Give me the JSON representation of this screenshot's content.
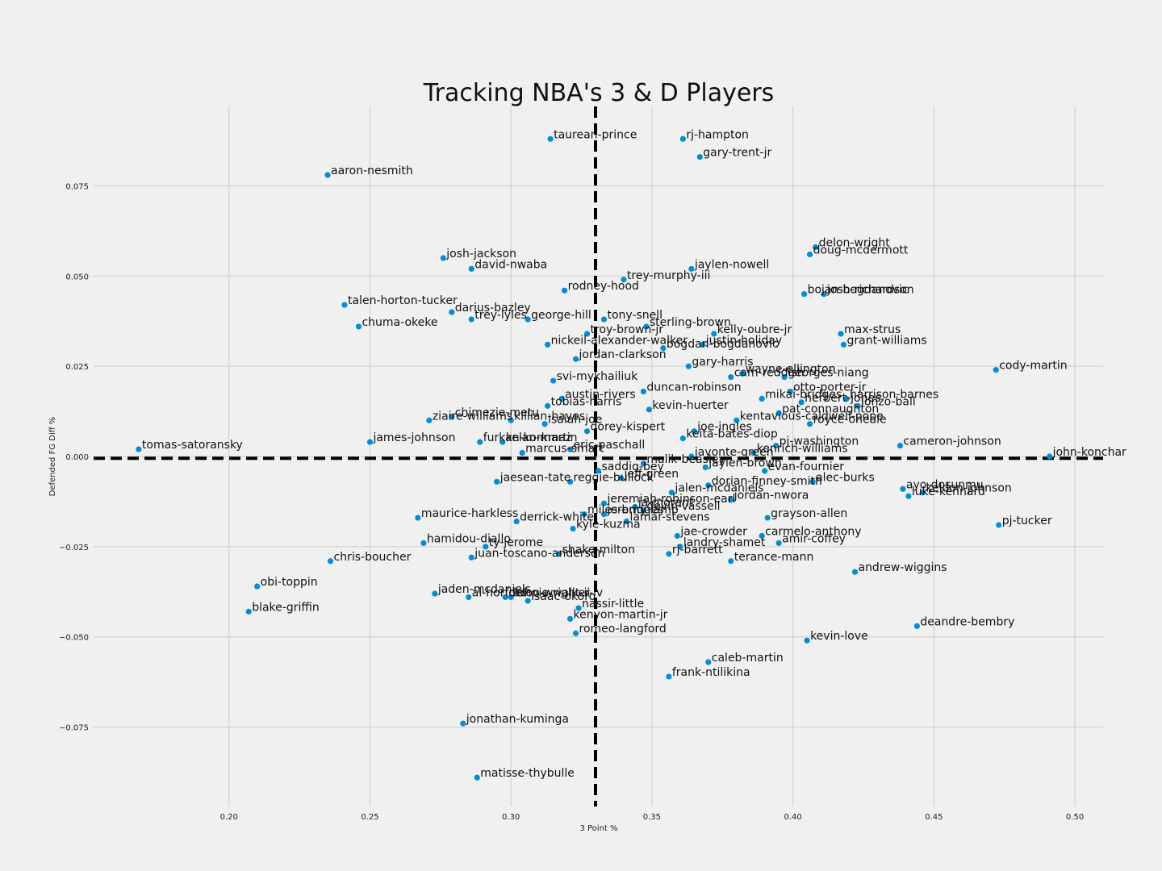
{
  "chart_data": {
    "type": "scatter",
    "title": "Tracking NBA's 3 & D Players",
    "xlabel": "3 Point %",
    "ylabel": "Defended FG Diff %",
    "xlim": [
      0.152,
      0.51
    ],
    "ylim": [
      -0.097,
      0.097
    ],
    "xticks": [
      0.2,
      0.25,
      0.3,
      0.35,
      0.4,
      0.45,
      0.5
    ],
    "xtick_labels": [
      "0.20",
      "0.25",
      "0.30",
      "0.35",
      "0.40",
      "0.45",
      "0.50"
    ],
    "yticks": [
      -0.075,
      -0.05,
      -0.025,
      0.0,
      0.025,
      0.05,
      0.075
    ],
    "ytick_labels": [
      "−0.075",
      "−0.050",
      "−0.025",
      "0.000",
      "0.025",
      "0.050",
      "0.075"
    ],
    "grid": true,
    "reference_lines": {
      "x": 0.33,
      "y": -0.0005
    },
    "colors": {
      "marker": "#008fd5",
      "background": "#f0f0f0",
      "grid": "#cbcbcb",
      "reference": "#000000"
    },
    "points": [
      {
        "name": "taurean-prince",
        "x": 0.314,
        "y": 0.088
      },
      {
        "name": "rj-hampton",
        "x": 0.361,
        "y": 0.088
      },
      {
        "name": "gary-trent-jr",
        "x": 0.367,
        "y": 0.083
      },
      {
        "name": "aaron-nesmith",
        "x": 0.235,
        "y": 0.078
      },
      {
        "name": "delon-wright",
        "x": 0.408,
        "y": 0.058
      },
      {
        "name": "doug-mcdermott",
        "x": 0.406,
        "y": 0.056
      },
      {
        "name": "josh-jackson",
        "x": 0.276,
        "y": 0.055
      },
      {
        "name": "david-nwaba",
        "x": 0.286,
        "y": 0.052
      },
      {
        "name": "jaylen-nowell",
        "x": 0.364,
        "y": 0.052
      },
      {
        "name": "trey-murphy-iii",
        "x": 0.34,
        "y": 0.049
      },
      {
        "name": "obi-toppin",
        "x": 0.21,
        "y": -0.036
      },
      {
        "name": "blake-griffin",
        "x": 0.207,
        "y": -0.043
      },
      {
        "name": "chuma-okeke",
        "x": 0.246,
        "y": 0.036
      },
      {
        "name": "talen-horton-tucker",
        "x": 0.241,
        "y": 0.042
      },
      {
        "name": "darius-bazley",
        "x": 0.279,
        "y": 0.04
      },
      {
        "name": "trey-lyles",
        "x": 0.286,
        "y": 0.038
      },
      {
        "name": "george-hill",
        "x": 0.306,
        "y": 0.038
      },
      {
        "name": "rodney-hood",
        "x": 0.319,
        "y": 0.046
      },
      {
        "name": "bojan-bogdanovic",
        "x": 0.404,
        "y": 0.045
      },
      {
        "name": "josh-richardson",
        "x": 0.411,
        "y": 0.045
      },
      {
        "name": "tony-snell",
        "x": 0.333,
        "y": 0.038
      },
      {
        "name": "sterling-brown",
        "x": 0.348,
        "y": 0.036
      },
      {
        "name": "kelly-oubre-jr",
        "x": 0.372,
        "y": 0.034
      },
      {
        "name": "max-strus",
        "x": 0.417,
        "y": 0.034
      },
      {
        "name": "grant-williams",
        "x": 0.418,
        "y": 0.031
      },
      {
        "name": "troy-brown-jr",
        "x": 0.327,
        "y": 0.034
      },
      {
        "name": "nickeil-alexander-walker",
        "x": 0.313,
        "y": 0.031
      },
      {
        "name": "bogdan-bogdanovic",
        "x": 0.354,
        "y": 0.03
      },
      {
        "name": "justin-holiday",
        "x": 0.368,
        "y": 0.031
      },
      {
        "name": "jordan-clarkson",
        "x": 0.323,
        "y": 0.027
      },
      {
        "name": "gary-harris",
        "x": 0.363,
        "y": 0.025
      },
      {
        "name": "cody-martin",
        "x": 0.472,
        "y": 0.024
      },
      {
        "name": "svi-mykhailiuk",
        "x": 0.315,
        "y": 0.021
      },
      {
        "name": "cam-reddish",
        "x": 0.378,
        "y": 0.022
      },
      {
        "name": "wayne-ellington",
        "x": 0.382,
        "y": 0.023
      },
      {
        "name": "georges-niang",
        "x": 0.397,
        "y": 0.022
      },
      {
        "name": "duncan-robinson",
        "x": 0.347,
        "y": 0.018
      },
      {
        "name": "otto-porter-jr",
        "x": 0.399,
        "y": 0.018
      },
      {
        "name": "mikai-bridges",
        "x": 0.389,
        "y": 0.016
      },
      {
        "name": "herbert-jones",
        "x": 0.403,
        "y": 0.015
      },
      {
        "name": "lonzo-ball",
        "x": 0.423,
        "y": 0.014
      },
      {
        "name": "harrison-barnes",
        "x": 0.419,
        "y": 0.016
      },
      {
        "name": "austin-rivers",
        "x": 0.318,
        "y": 0.016
      },
      {
        "name": "tobias-harris",
        "x": 0.313,
        "y": 0.014
      },
      {
        "name": "kevin-huerter",
        "x": 0.349,
        "y": 0.013
      },
      {
        "name": "pat-connaughton",
        "x": 0.395,
        "y": 0.012
      },
      {
        "name": "kentavious-caldwell-pope",
        "x": 0.38,
        "y": 0.01
      },
      {
        "name": "royce-oneale",
        "x": 0.406,
        "y": 0.009
      },
      {
        "name": "chimezie-metu",
        "x": 0.279,
        "y": 0.011
      },
      {
        "name": "ziaire-williams",
        "x": 0.271,
        "y": 0.01
      },
      {
        "name": "killian-hayes",
        "x": 0.3,
        "y": 0.01
      },
      {
        "name": "isaiah-joe",
        "x": 0.312,
        "y": 0.009
      },
      {
        "name": "dorey-kispert",
        "x": 0.327,
        "y": 0.007
      },
      {
        "name": "joe-ingles",
        "x": 0.365,
        "y": 0.007
      },
      {
        "name": "keita-bates-diop",
        "x": 0.361,
        "y": 0.005
      },
      {
        "name": "james-johnson",
        "x": 0.25,
        "y": 0.004
      },
      {
        "name": "furkan-korkmaz",
        "x": 0.289,
        "y": 0.004
      },
      {
        "name": "kelan-martin",
        "x": 0.297,
        "y": 0.004
      },
      {
        "name": "eric-paschall",
        "x": 0.321,
        "y": 0.002
      },
      {
        "name": "marcus-smart",
        "x": 0.304,
        "y": 0.001
      },
      {
        "name": "pj-washington",
        "x": 0.394,
        "y": 0.003
      },
      {
        "name": "cameron-johnson",
        "x": 0.438,
        "y": 0.003
      },
      {
        "name": "tomas-satoransky",
        "x": 0.168,
        "y": 0.002
      },
      {
        "name": "kenrich-williams",
        "x": 0.386,
        "y": 0.001
      },
      {
        "name": "john-konchar",
        "x": 0.491,
        "y": 0.0
      },
      {
        "name": "malik-beasley",
        "x": 0.347,
        "y": -0.002
      },
      {
        "name": "jayonte-green",
        "x": 0.364,
        "y": 0.0
      },
      {
        "name": "jaylen-brown",
        "x": 0.369,
        "y": -0.003
      },
      {
        "name": "evan-fournier",
        "x": 0.39,
        "y": -0.004
      },
      {
        "name": "saddiq-bey",
        "x": 0.331,
        "y": -0.004
      },
      {
        "name": "jeff-green",
        "x": 0.339,
        "y": -0.006
      },
      {
        "name": "reggie-bullock",
        "x": 0.321,
        "y": -0.007
      },
      {
        "name": "jaesean-tate",
        "x": 0.295,
        "y": -0.007
      },
      {
        "name": "alec-burks",
        "x": 0.407,
        "y": -0.007
      },
      {
        "name": "dorian-finney-smith",
        "x": 0.37,
        "y": -0.008
      },
      {
        "name": "ayo-dosunmu",
        "x": 0.439,
        "y": -0.009
      },
      {
        "name": "keldon-johnson",
        "x": 0.446,
        "y": -0.01
      },
      {
        "name": "luke-kennard",
        "x": 0.441,
        "y": -0.011
      },
      {
        "name": "jalen-mcdaniels",
        "x": 0.357,
        "y": -0.01
      },
      {
        "name": "jordan-nwora",
        "x": 0.378,
        "y": -0.012
      },
      {
        "name": "jeremiah-robinson-earl",
        "x": 0.333,
        "y": -0.013
      },
      {
        "name": "ja-morant",
        "x": 0.344,
        "y": -0.014
      },
      {
        "name": "devin-vassell",
        "x": 0.347,
        "y": -0.015
      },
      {
        "name": "jeremy-lamb",
        "x": 0.333,
        "y": -0.016
      },
      {
        "name": "miles-bridges",
        "x": 0.326,
        "y": -0.016
      },
      {
        "name": "lamar-stevens",
        "x": 0.341,
        "y": -0.018
      },
      {
        "name": "grayson-allen",
        "x": 0.391,
        "y": -0.017
      },
      {
        "name": "maurice-harkless",
        "x": 0.267,
        "y": -0.017
      },
      {
        "name": "derrick-white",
        "x": 0.302,
        "y": -0.018
      },
      {
        "name": "kyle-kuzma",
        "x": 0.322,
        "y": -0.02
      },
      {
        "name": "pj-tucker",
        "x": 0.473,
        "y": -0.019
      },
      {
        "name": "jae-crowder",
        "x": 0.359,
        "y": -0.022
      },
      {
        "name": "carmelo-anthony",
        "x": 0.389,
        "y": -0.022
      },
      {
        "name": "landry-shamet",
        "x": 0.36,
        "y": -0.025
      },
      {
        "name": "amir-coffey",
        "x": 0.395,
        "y": -0.024
      },
      {
        "name": "hamidou-diallo",
        "x": 0.269,
        "y": -0.024
      },
      {
        "name": "ty-jerome",
        "x": 0.291,
        "y": -0.025
      },
      {
        "name": "shake-milton",
        "x": 0.317,
        "y": -0.027
      },
      {
        "name": "juan-toscano-anderson",
        "x": 0.286,
        "y": -0.028
      },
      {
        "name": "rj-barrett",
        "x": 0.356,
        "y": -0.027
      },
      {
        "name": "chris-boucher",
        "x": 0.236,
        "y": -0.029
      },
      {
        "name": "terance-mann",
        "x": 0.378,
        "y": -0.029
      },
      {
        "name": "andrew-wiggins",
        "x": 0.422,
        "y": -0.032
      },
      {
        "name": "jaden-mcdaniels",
        "x": 0.273,
        "y": -0.038
      },
      {
        "name": "al-horford",
        "x": 0.285,
        "y": -0.039
      },
      {
        "name": "delon-wright-ii",
        "x": 0.298,
        "y": -0.039
      },
      {
        "name": "lonnie-walker-iv",
        "x": 0.3,
        "y": -0.039
      },
      {
        "name": "isaac-okoro",
        "x": 0.306,
        "y": -0.04
      },
      {
        "name": "nassir-little",
        "x": 0.324,
        "y": -0.042
      },
      {
        "name": "kenyon-martin-jr",
        "x": 0.321,
        "y": -0.045
      },
      {
        "name": "romeo-langford",
        "x": 0.323,
        "y": -0.049
      },
      {
        "name": "deandre-bembry",
        "x": 0.444,
        "y": -0.047
      },
      {
        "name": "kevin-love",
        "x": 0.405,
        "y": -0.051
      },
      {
        "name": "caleb-martin",
        "x": 0.37,
        "y": -0.057
      },
      {
        "name": "frank-ntilikina",
        "x": 0.356,
        "y": -0.061
      },
      {
        "name": "jonathan-kuminga",
        "x": 0.283,
        "y": -0.074
      },
      {
        "name": "matisse-thybulle",
        "x": 0.288,
        "y": -0.089
      }
    ]
  }
}
